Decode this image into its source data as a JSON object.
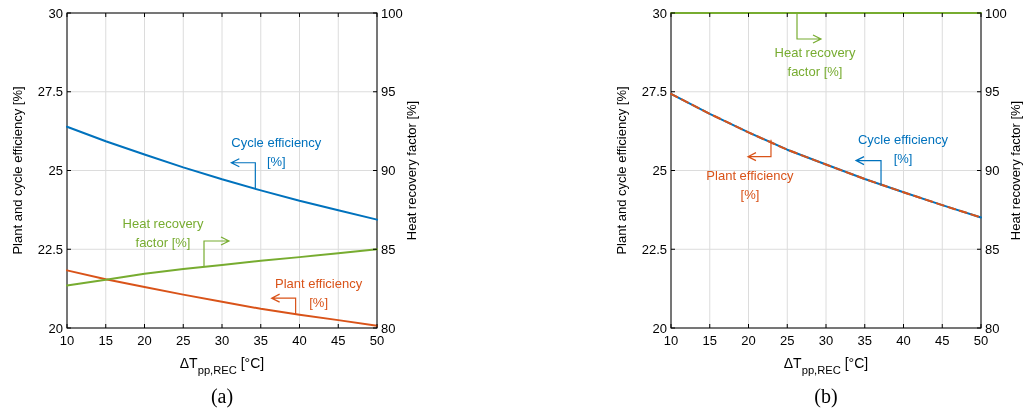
{
  "chart_data": [
    {
      "type": "line",
      "title": "(a)",
      "xlabel": "ΔT$_{pp,REC}$ [°C]",
      "ylabel": "Plant and cycle efficiency [%]",
      "y2label": "Heat recovery factor [%]",
      "x": [
        10,
        15,
        20,
        25,
        30,
        35,
        40,
        45,
        50
      ],
      "series": [
        {
          "color": "#0072bd",
          "values": [
            26.39,
            25.93,
            25.51,
            25.1,
            24.72,
            24.37,
            24.04,
            23.74,
            23.44
          ]
        },
        {
          "color": "#d95319",
          "values": [
            21.83,
            21.55,
            21.3,
            21.06,
            20.83,
            20.61,
            20.42,
            20.25,
            20.07
          ]
        },
        {
          "color": "#77ac30",
          "axis": "y2",
          "values": [
            82.7,
            83.07,
            83.44,
            83.74,
            84.0,
            84.27,
            84.5,
            84.75,
            85.0
          ]
        }
      ],
      "xlim": [
        10,
        50
      ],
      "xticks": [
        10,
        15,
        20,
        25,
        30,
        35,
        40,
        45,
        50
      ],
      "ylim": [
        20,
        30
      ],
      "yticks": [
        20,
        22.5,
        25,
        27.5,
        30
      ],
      "y2lim": [
        80,
        100
      ],
      "y2ticks": [
        80,
        85,
        90,
        95,
        100
      ],
      "grid": true,
      "annotations": [
        {
          "text": "Cycle efficiency [%]",
          "x": 34.3,
          "y": 24.42
        },
        {
          "text": "Plant efficiency [%]",
          "x": 39.5,
          "y": 20.44
        },
        "Heat recovery factor [%]"
      ]
    },
    {
      "type": "line",
      "title": "(b)",
      "xlabel": "ΔT$_{pp,REC}$ [°C]",
      "ylabel": "Plant and cycle efficiency [%]",
      "y2label": "Heat recovery factor [%]",
      "x": [
        10,
        15,
        20,
        25,
        30,
        35,
        40,
        45,
        50
      ],
      "series": [
        {
          "color": "#0072bd",
          "values": [
            27.43,
            26.8,
            26.21,
            25.66,
            25.19,
            24.73,
            24.31,
            23.9,
            23.51
          ]
        },
        {
          "color": "#d95319",
          "line_style": "dashed",
          "values": [
            27.43,
            26.8,
            26.21,
            25.66,
            25.19,
            24.73,
            24.31,
            23.9,
            23.51
          ]
        },
        {
          "color": "#77ac30",
          "axis": "y2",
          "values": [
            100,
            100,
            100,
            100,
            100,
            100,
            100,
            100,
            100
          ]
        }
      ],
      "xlim": [
        10,
        50
      ],
      "xticks": [
        10,
        15,
        20,
        25,
        30,
        35,
        40,
        45,
        50
      ],
      "ylim": [
        20,
        30
      ],
      "yticks": [
        20,
        22.5,
        25,
        27.5,
        30
      ],
      "y2lim": [
        80,
        100
      ],
      "y2ticks": [
        80,
        85,
        90,
        95,
        100
      ],
      "grid": true,
      "annotations": [
        {
          "text": "Cycle efficiency [%]",
          "x": 37.1,
          "y": 24.52
        },
        {
          "text": "Plant efficiency [%]",
          "x": 22.9,
          "y": 25.98
        },
        "Heat recovery factor [%]"
      ]
    }
  ]
}
